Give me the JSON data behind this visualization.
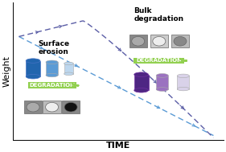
{
  "xlabel": "TIME",
  "ylabel": "Weight",
  "background_color": "#ffffff",
  "line_surface_color": "#5b9bd5",
  "line_bulk_color": "#5b5ea6",
  "surface_text": "Surface\nerosion",
  "bulk_text": "Bulk\ndegradation",
  "degradation_label": "DEGRADATION",
  "xlabel_fontsize": 8,
  "ylabel_fontsize": 8,
  "annotation_fontsize": 6.5,
  "degrad_fontsize": 5.0,
  "cylinder_blue": [
    "#2165ae",
    "#5b9bd5",
    "#bdd7ee"
  ],
  "cylinder_purple": [
    "#4e2683",
    "#9b72c0",
    "#d9d2e9"
  ],
  "disk_surface_outer": [
    "#aaaaaa",
    "#cccccc",
    "#888888"
  ],
  "disk_surface_inner": [
    "#888888",
    "#ffffff",
    "#222222"
  ],
  "disk_bulk_outer": [
    "#aaaaaa",
    "#dddddd",
    "#cccccc"
  ],
  "disk_bulk_inner": [
    "#888888",
    "#ffffff",
    "#999999"
  ],
  "green_arrow": "#70ad47",
  "green_bg": "#92d050"
}
